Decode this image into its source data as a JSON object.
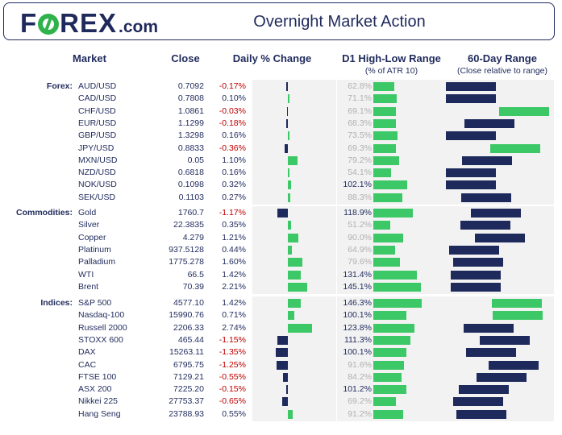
{
  "header": {
    "logo_text": "FOREX",
    "logo_suffix": ".com",
    "title": "Overnight Market Action"
  },
  "columns": {
    "market": "Market",
    "close": "Close",
    "daily_change": "Daily % Change",
    "range": "D1 High-Low Range",
    "range_sub": "(% of ATR 10)",
    "sixty": "60-Day Range",
    "sixty_sub": "(Close relative to range)"
  },
  "colors": {
    "navy": "#1f2a5c",
    "green": "#3cc866",
    "negative_text": "#c00000",
    "panel": "#f2f2f2"
  },
  "chart_data": {
    "type": "table",
    "groups": [
      {
        "label": "Forex:",
        "rows": [
          {
            "market": "AUD/USD",
            "close": "0.7092",
            "change": "-0.17%",
            "change_value": -0.17,
            "range": "62.8%",
            "range_value": 62.8,
            "sixty_value": 0.0
          },
          {
            "market": "CAD/USD",
            "close": "0.7808",
            "change": "0.10%",
            "change_value": 0.1,
            "range": "71.1%",
            "range_value": 71.1,
            "sixty_value": 0.0
          },
          {
            "market": "CHF/USD",
            "close": "1.0861",
            "change": "-0.03%",
            "change_value": -0.03,
            "range": "69.1%",
            "range_value": 69.1,
            "sixty_value": 0.93
          },
          {
            "market": "EUR/USD",
            "close": "1.1299",
            "change": "-0.18%",
            "change_value": -0.18,
            "range": "68.3%",
            "range_value": 68.3,
            "sixty_value": 0.32
          },
          {
            "market": "GBP/USD",
            "close": "1.3298",
            "change": "0.16%",
            "change_value": 0.16,
            "range": "73.5%",
            "range_value": 73.5,
            "sixty_value": 0.0
          },
          {
            "market": "JPY/USD",
            "close": "0.8833",
            "change": "-0.36%",
            "change_value": -0.36,
            "range": "69.3%",
            "range_value": 69.3,
            "sixty_value": 0.78
          },
          {
            "market": "MXN/USD",
            "close": "0.05",
            "change": "1.10%",
            "change_value": 1.1,
            "range": "79.2%",
            "range_value": 79.2,
            "sixty_value": 0.28
          },
          {
            "market": "NZD/USD",
            "close": "0.6818",
            "change": "0.16%",
            "change_value": 0.16,
            "range": "54.1%",
            "range_value": 54.1,
            "sixty_value": 0.0
          },
          {
            "market": "NOK/USD",
            "close": "0.1098",
            "change": "0.32%",
            "change_value": 0.32,
            "range": "102.1%",
            "range_value": 102.1,
            "sixty_value": 0.0
          },
          {
            "market": "SEK/USD",
            "close": "0.1103",
            "change": "0.27%",
            "change_value": 0.27,
            "range": "88.3%",
            "range_value": 88.3,
            "sixty_value": 0.27
          }
        ]
      },
      {
        "label": "Commodities:",
        "rows": [
          {
            "market": "Gold",
            "close": "1760.7",
            "change": "-1.17%",
            "change_value": -1.17,
            "range": "118.9%",
            "range_value": 118.9,
            "sixty_value": 0.43
          },
          {
            "market": "Silver",
            "close": "22.3835",
            "change": "0.35%",
            "change_value": 0.35,
            "range": "51.2%",
            "range_value": 51.2,
            "sixty_value": 0.25
          },
          {
            "market": "Copper",
            "close": "4.279",
            "change": "1.21%",
            "change_value": 1.21,
            "range": "90.0%",
            "range_value": 90.0,
            "sixty_value": 0.51
          },
          {
            "market": "Platinum",
            "close": "937.5128",
            "change": "0.44%",
            "change_value": 0.44,
            "range": "64.9%",
            "range_value": 64.9,
            "sixty_value": 0.05
          },
          {
            "market": "Palladium",
            "close": "1775.278",
            "change": "1.60%",
            "change_value": 1.6,
            "range": "79.6%",
            "range_value": 79.6,
            "sixty_value": 0.12
          },
          {
            "market": "WTI",
            "close": "66.5",
            "change": "1.42%",
            "change_value": 1.42,
            "range": "131.4%",
            "range_value": 131.4,
            "sixty_value": 0.08
          },
          {
            "market": "Brent",
            "close": "70.39",
            "change": "2.21%",
            "change_value": 2.21,
            "range": "145.1%",
            "range_value": 145.1,
            "sixty_value": 0.08
          }
        ]
      },
      {
        "label": "Indices:",
        "rows": [
          {
            "market": "S&P 500",
            "close": "4577.10",
            "change": "1.42%",
            "change_value": 1.42,
            "range": "146.3%",
            "range_value": 146.3,
            "sixty_value": 0.8
          },
          {
            "market": "Nasdaq-100",
            "close": "15990.76",
            "change": "0.71%",
            "change_value": 0.71,
            "range": "100.1%",
            "range_value": 100.1,
            "sixty_value": 0.81
          },
          {
            "market": "Russell 2000",
            "close": "2206.33",
            "change": "2.74%",
            "change_value": 2.74,
            "range": "123.8%",
            "range_value": 123.8,
            "sixty_value": 0.31
          },
          {
            "market": "STOXX 600",
            "close": "465.44",
            "change": "-1.15%",
            "change_value": -1.15,
            "range": "111.3%",
            "range_value": 111.3,
            "sixty_value": 0.59
          },
          {
            "market": "DAX",
            "close": "15263.11",
            "change": "-1.35%",
            "change_value": -1.35,
            "range": "100.1%",
            "range_value": 100.1,
            "sixty_value": 0.35
          },
          {
            "market": "CAC",
            "close": "6795.75",
            "change": "-1.25%",
            "change_value": -1.25,
            "range": "91.6%",
            "range_value": 91.6,
            "sixty_value": 0.74
          },
          {
            "market": "FTSE 100",
            "close": "7129.21",
            "change": "-0.55%",
            "change_value": -0.55,
            "range": "84.2%",
            "range_value": 84.2,
            "sixty_value": 0.54
          },
          {
            "market": "ASX 200",
            "close": "7225.20",
            "change": "-0.15%",
            "change_value": -0.15,
            "range": "101.2%",
            "range_value": 101.2,
            "sixty_value": 0.22
          },
          {
            "market": "Nikkei 225",
            "close": "27753.37",
            "change": "-0.65%",
            "change_value": -0.65,
            "range": "69.2%",
            "range_value": 69.2,
            "sixty_value": 0.13
          },
          {
            "market": "Hang Seng",
            "close": "23788.93",
            "change": "0.55%",
            "change_value": 0.55,
            "range": "91.2%",
            "range_value": 91.2,
            "sixty_value": 0.18
          }
        ]
      }
    ]
  }
}
